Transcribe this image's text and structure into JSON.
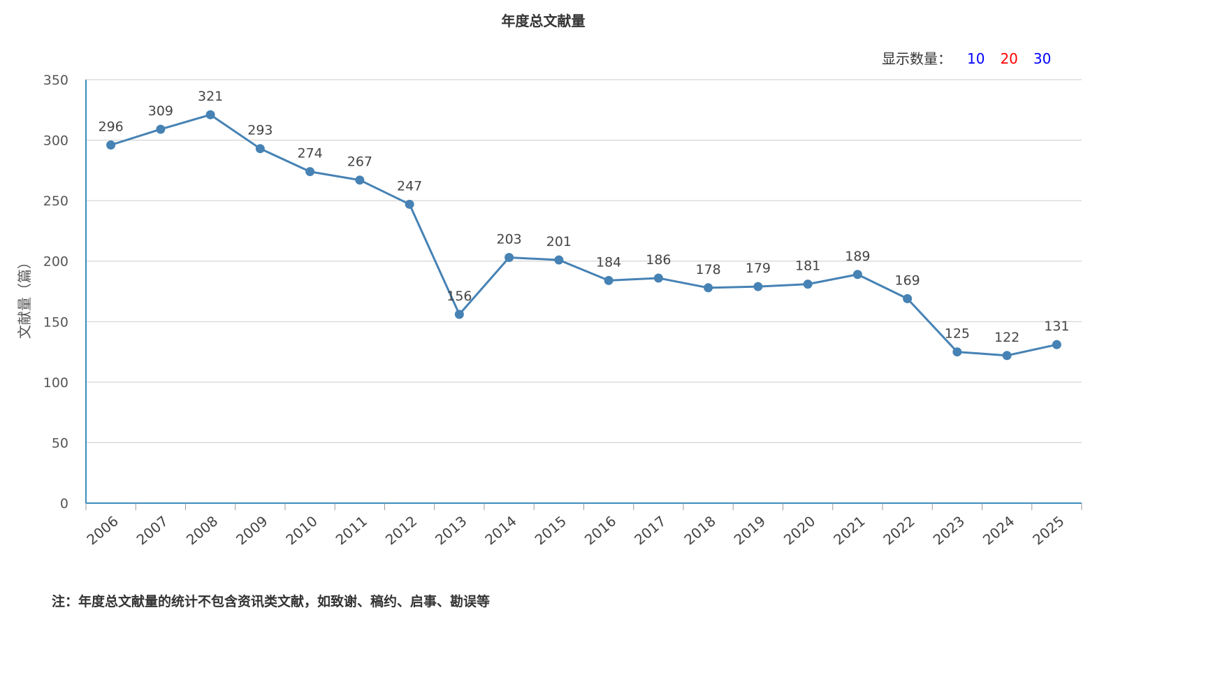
{
  "title": "年度总文献量",
  "display_count": {
    "label": "显示数量：",
    "options": [
      {
        "value": "10",
        "color": "#0000ff"
      },
      {
        "value": "20",
        "color": "#ff0000"
      },
      {
        "value": "30",
        "color": "#0000ff"
      }
    ]
  },
  "note": "注：年度总文献量的统计不包含资讯类文献，如致谢、稿约、启事、勘误等",
  "colors": {
    "line": "#4682b4",
    "axis": "#3c8dbc",
    "grid": "#cccccc"
  },
  "chart_data": {
    "type": "line",
    "title": "年度总文献量",
    "xlabel": "",
    "ylabel": "文献量（篇）",
    "ylim": [
      0,
      350
    ],
    "yticks": [
      0,
      50,
      100,
      150,
      200,
      250,
      300,
      350
    ],
    "grid": true,
    "categories": [
      "2006",
      "2007",
      "2008",
      "2009",
      "2010",
      "2011",
      "2012",
      "2013",
      "2014",
      "2015",
      "2016",
      "2017",
      "2018",
      "2019",
      "2020",
      "2021",
      "2022",
      "2023",
      "2024",
      "2025"
    ],
    "series": [
      {
        "values": [
          296,
          309,
          321,
          293,
          274,
          267,
          247,
          156,
          203,
          201,
          184,
          186,
          178,
          179,
          181,
          189,
          169,
          125,
          122,
          131
        ]
      }
    ]
  }
}
